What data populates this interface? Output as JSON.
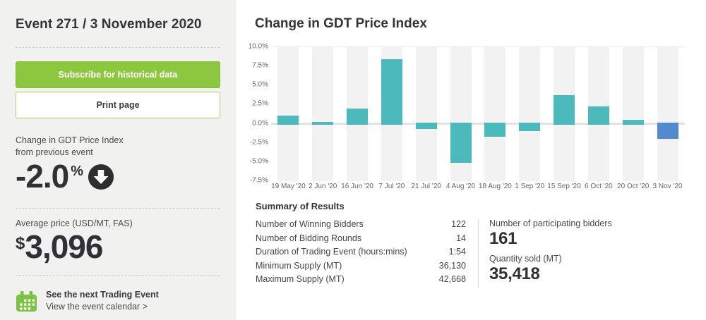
{
  "sidebar": {
    "title": "Event 271 / 3 November 2020",
    "subscribe_label": "Subscribe for historical data",
    "print_label": "Print page",
    "change_label_line1": "Change in GDT Price Index",
    "change_label_line2": "from previous event",
    "change_value": "-2.0",
    "change_unit": "%",
    "change_direction": "down",
    "avg_price_label": "Average price (USD/MT, FAS)",
    "avg_price_currency": "$",
    "avg_price_value": "3,096",
    "next_event_title": "See the next Trading Event",
    "next_event_link": "View the event calendar >"
  },
  "main": {
    "chart_title": "Change in GDT Price Index",
    "summary": {
      "heading": "Summary of Results",
      "rows": [
        {
          "label": "Number of Winning Bidders",
          "value": "122"
        },
        {
          "label": "Number of Bidding Rounds",
          "value": "14"
        },
        {
          "label": "Duration of Trading Event (hours:mins)",
          "value": "1:54"
        },
        {
          "label": "Minimum Supply (MT)",
          "value": "36,130"
        },
        {
          "label": "Maximum Supply (MT)",
          "value": "42,668"
        }
      ],
      "stats": [
        {
          "label": "Number of participating bidders",
          "value": "161"
        },
        {
          "label": "Quantity sold (MT)",
          "value": "35,418"
        }
      ]
    }
  },
  "chart_data": {
    "type": "bar",
    "title": "Change in GDT Price Index",
    "categories": [
      "19 May '20",
      "2 Jun '20",
      "16 Jun '20",
      "7 Jul '20",
      "21 Jul '20",
      "4 Aug '20",
      "18 Aug '20",
      "1 Sep '20",
      "15 Sep '20",
      "6 Oct '20",
      "20 Oct '20",
      "3 Nov '20"
    ],
    "values": [
      1.1,
      0.2,
      2.0,
      8.4,
      -0.7,
      -5.1,
      -1.7,
      -1.0,
      3.7,
      2.3,
      0.5,
      -2.0
    ],
    "unit": "%",
    "xlabel": "",
    "ylabel": "",
    "ylim": [
      -7.5,
      10.0
    ],
    "ytick_labels": [
      "10.0%",
      "7.5%",
      "5.0%",
      "2.5%",
      "0.0%",
      "-2.5%",
      "-5.0%",
      "-7.5%"
    ],
    "grid": false,
    "legend": false,
    "bar_color": "#4cb9bd",
    "highlight_color": "#5289cf",
    "highlight_index": 11,
    "stripe_color": "#f2f2f2",
    "zero_line_color": "#e2e2e2"
  },
  "colors": {
    "sidebar_bg": "#f1f1ef",
    "accent_green": "#8dc63f",
    "teal_bar": "#4cb9bd",
    "blue_bar": "#5289cf",
    "heading_text": "#33333a"
  }
}
